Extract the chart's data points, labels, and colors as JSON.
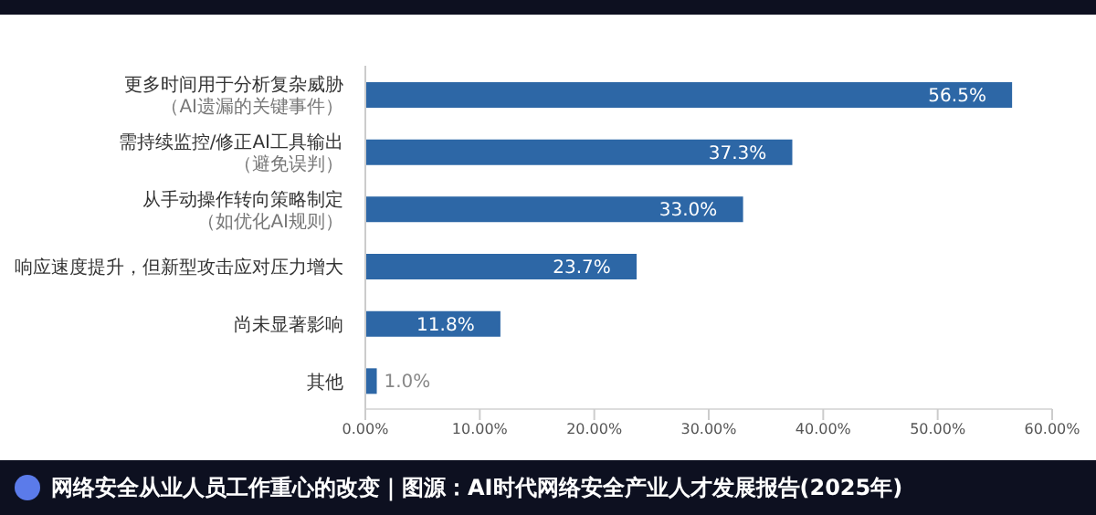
{
  "chart_data": {
    "type": "bar",
    "orientation": "horizontal",
    "title": "网络安全从业人员工作重心的改变｜图源：AI时代网络安全产业人才发展报告(2025年)",
    "categories": [
      "更多时间用于分析复杂威胁（AI遗漏的关键事件）",
      "需持续监控/修正AI工具输出（避免误判）",
      "从手动操作转向策略制定（如优化AI规则）",
      "响应速度提升，但新型攻击应对压力增大",
      "尚未显著影响",
      "其他"
    ],
    "values": [
      56.5,
      37.3,
      33.0,
      23.7,
      11.8,
      1.0
    ],
    "value_labels": [
      "56.5%",
      "37.3%",
      "33.0%",
      "23.7%",
      "11.8%",
      "1.0%"
    ],
    "color": "#2d67a6",
    "xlim": [
      0,
      60
    ],
    "xticks": [
      {
        "value": 0,
        "label": "0.00%"
      },
      {
        "value": 10,
        "label": "10.00%"
      },
      {
        "value": 20,
        "label": "20.00%"
      },
      {
        "value": 30,
        "label": "30.00%"
      },
      {
        "value": 40,
        "label": "40.00%"
      },
      {
        "value": 50,
        "label": "50.00%"
      },
      {
        "value": 60,
        "label": "60.00%"
      }
    ],
    "grid": false
  }
}
